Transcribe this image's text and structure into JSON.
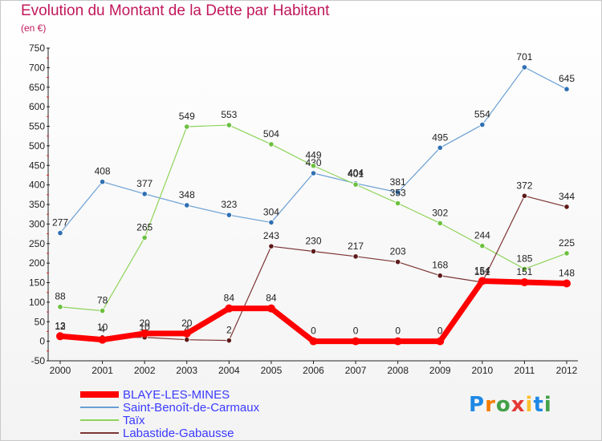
{
  "title": "Evolution du Montant de la Dette par Habitant",
  "subtitle": "(en €)",
  "logo": {
    "letters": [
      "P",
      "r",
      "o",
      "x",
      "i",
      "t",
      "i"
    ],
    "colors": [
      "#1e88e5",
      "#f57c00",
      "#43a047",
      "#e53935",
      "#fbc02d",
      "#1e88e5",
      "#43a047"
    ]
  },
  "chart_data": {
    "type": "line",
    "x": [
      "2000",
      "2001",
      "2002",
      "2003",
      "2004",
      "2005",
      "2006",
      "2007",
      "2008",
      "2009",
      "2010",
      "2011",
      "2012"
    ],
    "ylim": [
      -50,
      750
    ],
    "yticks": [
      -50,
      0,
      50,
      100,
      150,
      200,
      250,
      300,
      350,
      400,
      450,
      500,
      550,
      600,
      650,
      700,
      750
    ],
    "grid": false,
    "legend": "bottom-left",
    "series": [
      {
        "name": "Saint-Benoît-de-Carmaux",
        "color": "#6a9fd4",
        "marker": "#2f6fb3",
        "width": 1.2,
        "values": [
          277,
          408,
          377,
          348,
          323,
          304,
          430,
          404,
          381,
          495,
          554,
          701,
          645
        ]
      },
      {
        "name": "Taïx",
        "color": "#8ed45a",
        "marker": "#6cc040",
        "width": 1.2,
        "values": [
          88,
          78,
          265,
          549,
          553,
          504,
          449,
          401,
          353,
          302,
          244,
          185,
          225
        ]
      },
      {
        "name": "Labastide-Gabausse",
        "color": "#7d3535",
        "marker": "#5e1a1a",
        "width": 1.2,
        "values": [
          12,
          10,
          10,
          4,
          2,
          243,
          230,
          217,
          203,
          168,
          151,
          372,
          344
        ]
      },
      {
        "name": "BLAYE-LES-MINES",
        "color": "#ff0000",
        "marker": "#ff0000",
        "width": 7,
        "values": [
          13,
          4,
          20,
          20,
          84,
          84,
          0,
          0,
          0,
          0,
          154,
          151,
          148
        ]
      }
    ]
  }
}
